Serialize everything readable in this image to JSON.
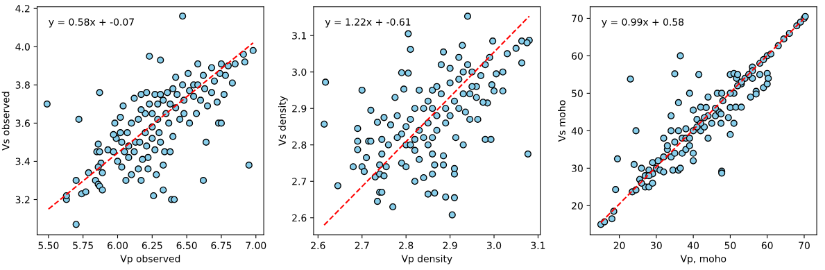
{
  "chart_data": [
    {
      "type": "scatter",
      "xlabel": "Vp observed",
      "ylabel": "Vs observed",
      "annotations": [
        "y = 0.58x + -0.07"
      ],
      "xlim": [
        5.418,
        7.057
      ],
      "ylim": [
        3.015,
        4.209
      ],
      "xticks": [
        {
          "value": 5.5,
          "label": "5.50"
        },
        5.75,
        {
          "value": 6,
          "label": "6.00"
        },
        6.25,
        {
          "value": 6.5,
          "label": "6.50"
        },
        6.75,
        {
          "value": 7,
          "label": "7.00"
        }
      ],
      "yticks": [
        3.2,
        3.4,
        3.6,
        3.8,
        {
          "value": 4,
          "label": "4.0"
        },
        4.2
      ],
      "series": [
        {
          "marker": "circle",
          "color": "#87ceeb",
          "x": [
            5.49,
            5.72,
            5.87,
            6.47,
            6.23,
            6.31,
            6.58,
            5.7,
            5.63,
            5.63,
            5.7,
            5.74,
            5.77,
            5.79,
            5.84,
            5.86,
            5.87,
            5.89,
            5.89,
            5.88,
            5.85,
            5.86,
            5.87,
            5.86,
            6.26,
            6.33,
            6.39,
            6.41,
            6.62,
            6.64,
            6.95,
            6.73,
            6.75,
            6.06,
            6.17,
            6.1,
            6.28,
            6.33,
            6.22,
            6.15,
            6.03,
            5.93,
            5.97,
            5.99,
            5.98,
            6.02,
            6.04,
            6.12,
            6.17,
            6.21,
            6.27,
            6.31,
            6.36,
            6.42,
            6.51,
            6.55,
            6.62,
            6.68,
            6.75,
            6.8,
            6.85,
            6.91,
            6.98,
            6.92,
            6.83,
            6.77,
            6.72,
            6.65,
            6.57,
            6.52,
            6.45,
            6.4,
            6.37,
            6.3,
            6.34,
            6.38,
            6.27,
            6.22,
            6.18,
            6.12,
            6.08,
            6.05,
            6.0,
            6.03,
            6.07,
            6.1,
            6.15,
            6.2,
            6.25,
            6.29,
            6.33,
            6.38,
            6.43,
            6.48,
            6.52,
            6.58,
            6.63,
            6.7,
            6.74,
            6.78,
            6.6,
            6.48,
            6.42,
            6.35,
            6.25,
            6.2,
            6.13,
            6.08,
            6.02,
            5.97,
            6.17,
            6.23,
            6.29,
            6.4,
            6.47,
            6.55,
            6.68,
            6.16,
            6.21,
            6.25,
            6.31
          ],
          "values": [
            3.7,
            3.62,
            3.76,
            4.16,
            3.95,
            3.93,
            3.91,
            3.07,
            3.2,
            3.22,
            3.3,
            3.23,
            3.24,
            3.34,
            3.3,
            3.28,
            3.27,
            3.25,
            3.34,
            3.39,
            3.45,
            3.49,
            3.45,
            3.37,
            3.22,
            3.25,
            3.2,
            3.2,
            3.3,
            3.5,
            3.38,
            3.6,
            3.6,
            3.3,
            3.3,
            3.33,
            3.33,
            3.38,
            3.36,
            3.36,
            3.37,
            3.46,
            3.45,
            3.52,
            3.6,
            3.63,
            3.69,
            3.73,
            3.75,
            3.76,
            3.75,
            3.75,
            3.76,
            3.84,
            3.86,
            3.8,
            3.85,
            3.89,
            3.91,
            3.9,
            3.91,
            3.96,
            3.98,
            3.92,
            3.81,
            3.75,
            3.71,
            3.69,
            3.65,
            3.6,
            3.62,
            3.53,
            3.6,
            3.55,
            3.45,
            3.45,
            3.46,
            3.42,
            3.41,
            3.45,
            3.42,
            3.45,
            3.4,
            3.5,
            3.55,
            3.6,
            3.62,
            3.65,
            3.65,
            3.7,
            3.72,
            3.7,
            3.75,
            3.72,
            3.77,
            3.8,
            3.78,
            3.82,
            3.86,
            3.85,
            3.72,
            3.65,
            3.68,
            3.65,
            3.58,
            3.55,
            3.5,
            3.48,
            3.55,
            3.54,
            3.67,
            3.7,
            3.62,
            3.78,
            3.8,
            3.74,
            3.76,
            3.5,
            3.48,
            3.52,
            3.5
          ]
        },
        {
          "type": "line",
          "color": "#ff0000",
          "line_style": "dashed",
          "x": [
            5.5,
            6.98
          ],
          "values": [
            3.15,
            4.02
          ]
        }
      ]
    },
    {
      "type": "scatter",
      "xlabel": "Vp density",
      "ylabel": "Vs density",
      "annotations": [
        "y = 1.22x + -0.61"
      ],
      "xlim": [
        2.59,
        3.105
      ],
      "ylim": [
        2.553,
        3.179
      ],
      "xticks": [
        2.6,
        2.7,
        2.8,
        2.9,
        {
          "value": 3,
          "label": "3.0"
        },
        3.1
      ],
      "yticks": [
        2.6,
        2.7,
        2.8,
        2.9,
        {
          "value": 3,
          "label": "3.0"
        },
        3.1
      ],
      "series": [
        {
          "marker": "circle",
          "color": "#87ceeb",
          "x": [
            2.614,
            2.617,
            2.645,
            2.7,
            2.72,
            2.68,
            2.69,
            2.69,
            2.69,
            2.7,
            2.705,
            2.71,
            2.715,
            2.72,
            2.73,
            2.735,
            2.74,
            2.745,
            2.74,
            2.745,
            2.74,
            2.75,
            2.755,
            2.745,
            2.75,
            2.735,
            2.76,
            2.765,
            2.77,
            2.775,
            2.78,
            2.79,
            2.79,
            2.805,
            2.81,
            2.805,
            2.795,
            2.8,
            2.82,
            2.82,
            2.83,
            2.84,
            2.85,
            2.865,
            2.86,
            2.865,
            2.86,
            2.885,
            2.885,
            2.89,
            2.905,
            2.91,
            2.91,
            2.91,
            2.913,
            2.93,
            2.98,
            2.993,
            3.077,
            2.94,
            2.928,
            2.997,
            2.885,
            2.92,
            3.063,
            3.08,
            3.075,
            3.063,
            3.05,
            3.03,
            3.02,
            3.005,
            3.02,
            3.0,
            2.995,
            2.985,
            2.975,
            2.963,
            2.945,
            2.935,
            2.945,
            2.96,
            2.97,
            2.98,
            2.99,
            2.94,
            2.92,
            2.9,
            2.88,
            2.86,
            2.85,
            2.83,
            2.82,
            2.81,
            2.8,
            2.79,
            2.78,
            2.8,
            2.83,
            2.85,
            2.87,
            2.89,
            2.91,
            2.93,
            2.95,
            2.87,
            2.89,
            2.86,
            2.84,
            2.9,
            2.92,
            2.88,
            2.84,
            2.86,
            2.82,
            2.81,
            2.85,
            2.87,
            2.9,
            2.93,
            2.96,
            2.95
          ],
          "values": [
            2.857,
            2.972,
            2.688,
            2.95,
            2.895,
            2.74,
            2.845,
            2.81,
            2.787,
            2.74,
            2.727,
            2.765,
            2.81,
            2.81,
            2.712,
            2.645,
            2.67,
            2.67,
            2.745,
            2.775,
            2.72,
            2.715,
            2.74,
            2.815,
            2.875,
            2.862,
            2.8,
            2.855,
            2.63,
            2.93,
            2.88,
            2.75,
            2.998,
            3.105,
            3.062,
            2.997,
            2.953,
            2.74,
            2.7,
            2.785,
            2.76,
            2.71,
            2.665,
            2.668,
            2.72,
            2.745,
            2.775,
            2.77,
            2.745,
            2.657,
            2.608,
            2.655,
            2.72,
            2.735,
            2.82,
            2.8,
            2.815,
            2.815,
            2.775,
            3.153,
            3.073,
            3.085,
            3.055,
            3.04,
            3.085,
            3.087,
            3.08,
            3.025,
            3.065,
            3.05,
            3.0,
            2.995,
            2.948,
            2.948,
            2.965,
            2.915,
            2.917,
            2.87,
            2.87,
            2.89,
            2.94,
            2.96,
            2.99,
            3.02,
            3.04,
            3.02,
            2.98,
            2.97,
            3.02,
            2.95,
            2.92,
            2.95,
            2.9,
            2.87,
            2.85,
            2.83,
            2.82,
            2.8,
            2.84,
            2.86,
            2.88,
            2.9,
            2.92,
            2.94,
            2.96,
            2.84,
            2.86,
            2.82,
            2.82,
            2.88,
            2.9,
            2.94,
            2.9,
            2.9,
            2.815,
            2.8,
            2.8,
            2.96,
            3.01,
            3.0,
            2.93,
            3.0
          ]
        },
        {
          "type": "line",
          "color": "#ff0000",
          "line_style": "dashed",
          "x": [
            2.614,
            3.08
          ],
          "values": [
            2.58,
            3.153
          ]
        }
      ]
    },
    {
      "type": "scatter",
      "xlabel": "Vp, moho",
      "ylabel": "Vs moho",
      "annotations": [
        "y = 0.99x + 0.58"
      ],
      "xlim": [
        12.1,
        73.4
      ],
      "ylim": [
        12.2,
        73.1
      ],
      "xticks": [
        20,
        30,
        40,
        50,
        60,
        70
      ],
      "yticks": [
        20,
        30,
        40,
        50,
        60,
        70
      ],
      "series": [
        {
          "marker": "circle",
          "color": "#87ceeb",
          "x": [
            15,
            16,
            18,
            18.5,
            19,
            19.5,
            23,
            24,
            24.5,
            23.5,
            24.5,
            25.5,
            26,
            27,
            27,
            28,
            28,
            29,
            29,
            29,
            30,
            31,
            32,
            32,
            32,
            33,
            34,
            34,
            34,
            34.5,
            35,
            35,
            36,
            36,
            36,
            36.5,
            36.5,
            37,
            38,
            38,
            39,
            39,
            40,
            40,
            40,
            41,
            41.5,
            42,
            42,
            43,
            43.5,
            44,
            44,
            45,
            46,
            46.5,
            47,
            47.5,
            47.5,
            47.7,
            47.7,
            47.7,
            49.5,
            50,
            50,
            50,
            51,
            51,
            51,
            51.5,
            51.7,
            52,
            53,
            53,
            55.5,
            56,
            56,
            57,
            57,
            58,
            59,
            60,
            60,
            60.3,
            60,
            61,
            63,
            64.5,
            66,
            68,
            69,
            70,
            70.3,
            30.5,
            37,
            38,
            40,
            42,
            44,
            46,
            48,
            50,
            52,
            54,
            56,
            58,
            33,
            35,
            39,
            41,
            43,
            53,
            55,
            59,
            26,
            28
          ],
          "values": [
            15,
            15.7,
            16.5,
            18.5,
            24.3,
            32.5,
            53.8,
            31,
            40,
            23.7,
            24.2,
            27,
            30,
            25,
            28,
            29.5,
            25,
            26,
            28.5,
            31.5,
            30,
            29.5,
            38,
            29,
            33,
            35,
            44,
            40,
            33,
            29.5,
            55.2,
            37,
            40,
            47.5,
            29.5,
            60,
            30,
            34,
            40.5,
            35,
            36,
            50,
            32,
            34,
            45.5,
            43,
            55,
            46.3,
            40,
            41,
            46.2,
            49,
            38,
            42,
            44,
            50,
            45,
            44.5,
            42,
            50,
            29.2,
            28.7,
            43.5,
            39,
            46.2,
            55,
            42,
            50,
            55.3,
            46.3,
            54,
            55,
            46.3,
            52.5,
            49,
            57,
            54,
            50.5,
            49.8,
            55,
            51.5,
            52.5,
            55.3,
            54,
            60,
            60.5,
            62.7,
            64.5,
            66,
            68,
            69,
            70,
            70.5,
            32,
            38,
            38,
            40,
            42,
            44,
            46,
            48,
            50,
            52,
            54,
            56,
            58,
            36,
            34,
            38,
            41,
            43.5,
            53,
            55,
            59,
            26,
            28
          ]
        },
        {
          "type": "line",
          "color": "#ff0000",
          "line_style": "dashed",
          "x": [
            15,
            70
          ],
          "values": [
            15.5,
            70
          ]
        }
      ]
    }
  ]
}
